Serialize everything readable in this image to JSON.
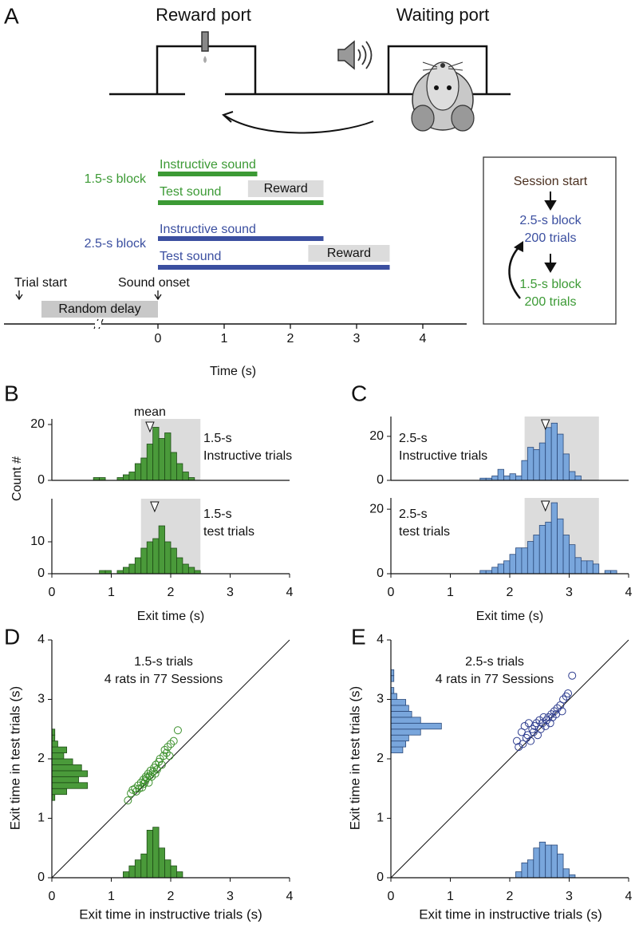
{
  "panel_labels": [
    "A",
    "B",
    "C",
    "D",
    "E"
  ],
  "diagram": {
    "ports": [
      "Reward port",
      "Waiting port"
    ],
    "blocks": [
      {
        "name": "1.5-s block",
        "sounds": [
          "Instructive sound",
          "Test sound"
        ],
        "reward": "Reward",
        "color": "#3c9a35",
        "sound_s": 1.5,
        "test_s": 2.5,
        "reward_s": [
          1.36,
          2.5
        ]
      },
      {
        "name": "2.5-s block",
        "sounds": [
          "Instructive sound",
          "Test sound"
        ],
        "reward": "Reward",
        "color": "#3b4fa0",
        "sound_s": 2.5,
        "test_s": 3.5,
        "reward_s": [
          2.27,
          3.5
        ]
      }
    ],
    "events": [
      "Trial start",
      "Sound onset"
    ],
    "delay": "Random delay",
    "time_ticks": [
      0,
      1,
      2,
      3,
      4
    ],
    "time_label": "Time (s)",
    "schedule": [
      "Session start",
      "2.5-s block",
      "200 trials",
      "1.5-s block",
      "200 trials"
    ]
  },
  "chart_data": [
    {
      "type": "histogram",
      "label": [
        "1.5-s",
        "Instructive trials"
      ],
      "ylabel": "Count #",
      "mean_label": "mean",
      "mean": 1.65,
      "shade": [
        1.5,
        2.5
      ],
      "color": "#4a9a3a",
      "edgecolor": "#1f4d17",
      "bins": [
        0.7,
        0.8,
        0.9,
        1.0,
        1.1,
        1.2,
        1.3,
        1.4,
        1.5,
        1.6,
        1.7,
        1.8,
        1.9,
        2.0,
        2.1,
        2.2,
        2.3,
        2.4
      ],
      "values": [
        1,
        1,
        0,
        0,
        1,
        2,
        3,
        6,
        8,
        13,
        19,
        15,
        17,
        10,
        6,
        3,
        1
      ],
      "xlim": [
        0,
        4
      ],
      "ylim": [
        0,
        22
      ],
      "yticks": [
        0,
        20
      ]
    },
    {
      "type": "histogram",
      "label": [
        "1.5-s",
        "test trials"
      ],
      "mean": 1.73,
      "shade": [
        1.5,
        2.5
      ],
      "color": "#4a9a3a",
      "edgecolor": "#1f4d17",
      "bins": [
        0.8,
        0.9,
        1.0,
        1.1,
        1.2,
        1.3,
        1.4,
        1.5,
        1.6,
        1.7,
        1.8,
        1.9,
        2.0,
        2.1,
        2.2,
        2.3,
        2.4,
        2.5
      ],
      "values": [
        1,
        1,
        0,
        1,
        2,
        3,
        5,
        8,
        10,
        11,
        15,
        10,
        8,
        5,
        3,
        2,
        1
      ],
      "xlim": [
        0,
        4
      ],
      "ylim": [
        0,
        23.5
      ],
      "yticks": [
        0,
        10
      ],
      "xticks": [
        0,
        1,
        2,
        3,
        4
      ],
      "xlabel": "Exit time (s)"
    },
    {
      "type": "histogram",
      "label": [
        "2.5-s",
        "Instructive trials"
      ],
      "mean": 2.6,
      "shade": [
        2.25,
        3.5
      ],
      "color": "#79a6dc",
      "edgecolor": "#2c4a7a",
      "bins": [
        1.5,
        1.6,
        1.7,
        1.8,
        1.9,
        2.0,
        2.1,
        2.2,
        2.3,
        2.4,
        2.5,
        2.6,
        2.7,
        2.8,
        2.9,
        3.0,
        3.1,
        3.2
      ],
      "values": [
        1,
        1,
        2,
        5,
        2,
        3,
        2,
        9,
        15,
        14,
        17,
        24,
        26,
        21,
        12,
        4,
        2
      ],
      "xlim": [
        0,
        4
      ],
      "ylim": [
        0,
        29
      ],
      "yticks": [
        0,
        20
      ]
    },
    {
      "type": "histogram",
      "label": [
        "2.5-s",
        "test trials"
      ],
      "mean": 2.6,
      "shade": [
        2.25,
        3.5
      ],
      "color": "#79a6dc",
      "edgecolor": "#2c4a7a",
      "bins": [
        1.5,
        1.6,
        1.7,
        1.8,
        1.9,
        2.0,
        2.1,
        2.2,
        2.3,
        2.4,
        2.5,
        2.6,
        2.7,
        2.8,
        2.9,
        3.0,
        3.1,
        3.2,
        3.3,
        3.4,
        3.5,
        3.6,
        3.7,
        3.8
      ],
      "values": [
        1,
        1,
        2,
        3,
        4,
        6,
        8,
        8,
        10,
        12,
        15,
        16,
        22,
        17,
        12,
        9,
        5,
        4,
        4,
        3,
        0,
        1,
        1
      ],
      "xlim": [
        0,
        4
      ],
      "ylim": [
        0,
        23.5
      ],
      "yticks": [
        0,
        20
      ],
      "xticks": [
        0,
        1,
        2,
        3,
        4
      ],
      "xlabel": "Exit time (s)"
    },
    {
      "type": "scatter",
      "annotations": [
        "1.5-s trials",
        "4 rats in 77 Sessions"
      ],
      "xlabel": "Exit time in instructive trials (s)",
      "ylabel": "Exit time in test trials (s)",
      "color": "#3a8f2a",
      "bar_color": "#4a9a3a",
      "edgecolor": "#1f4d17",
      "x": [
        1.28,
        1.33,
        1.36,
        1.4,
        1.42,
        1.45,
        1.47,
        1.5,
        1.52,
        1.54,
        1.55,
        1.57,
        1.58,
        1.6,
        1.62,
        1.63,
        1.65,
        1.66,
        1.68,
        1.7,
        1.72,
        1.74,
        1.75,
        1.77,
        1.8,
        1.82,
        1.85,
        1.88,
        1.9,
        1.93,
        1.95,
        1.98,
        2.0,
        2.05,
        2.12
      ],
      "values": [
        1.3,
        1.42,
        1.48,
        1.5,
        1.45,
        1.55,
        1.5,
        1.6,
        1.52,
        1.65,
        1.58,
        1.62,
        1.7,
        1.68,
        1.75,
        1.6,
        1.72,
        1.8,
        1.7,
        1.78,
        1.85,
        1.75,
        1.9,
        1.82,
        1.95,
        2.0,
        1.9,
        2.05,
        2.15,
        2.1,
        2.2,
        2.05,
        2.25,
        2.3,
        2.48
      ],
      "marginal_y": {
        "bins": [
          1.3,
          1.4,
          1.5,
          1.6,
          1.7,
          1.8,
          1.9,
          2.0,
          2.1,
          2.2,
          2.3,
          2.4,
          2.5
        ],
        "values": [
          0.05,
          0.25,
          0.6,
          0.45,
          0.6,
          0.5,
          0.35,
          0.2,
          0.25,
          0.1,
          0.05,
          0.05
        ]
      },
      "marginal_x": {
        "bins": [
          1.2,
          1.3,
          1.4,
          1.5,
          1.6,
          1.7,
          1.8,
          1.9,
          2.0,
          2.1,
          2.2
        ],
        "values": [
          0.1,
          0.2,
          0.3,
          0.4,
          0.8,
          0.85,
          0.5,
          0.3,
          0.2,
          0.1
        ]
      },
      "diagonal": true,
      "xlim": [
        0,
        4
      ],
      "ylim": [
        0,
        4
      ],
      "xticks": [
        0,
        1,
        2,
        3,
        4
      ],
      "yticks": [
        0,
        1,
        2,
        3,
        4
      ]
    },
    {
      "type": "scatter",
      "annotations": [
        "2.5-s trials",
        "4 rats in 77 Sessions"
      ],
      "xlabel": "Exit time in instructive trials (s)",
      "ylabel": "Exit time in test trials (s)",
      "color": "#2e3d8f",
      "bar_color": "#79a6dc",
      "edgecolor": "#2c4a7a",
      "x": [
        2.12,
        2.15,
        2.2,
        2.22,
        2.25,
        2.28,
        2.3,
        2.32,
        2.35,
        2.38,
        2.4,
        2.42,
        2.45,
        2.47,
        2.5,
        2.52,
        2.55,
        2.57,
        2.6,
        2.62,
        2.65,
        2.68,
        2.7,
        2.72,
        2.75,
        2.78,
        2.8,
        2.85,
        2.88,
        2.9,
        2.95,
        2.98,
        3.05
      ],
      "values": [
        2.3,
        2.2,
        2.45,
        2.25,
        2.55,
        2.35,
        2.4,
        2.6,
        2.3,
        2.5,
        2.45,
        2.55,
        2.6,
        2.4,
        2.65,
        2.5,
        2.6,
        2.7,
        2.55,
        2.65,
        2.7,
        2.6,
        2.75,
        2.7,
        2.8,
        2.75,
        2.85,
        2.9,
        2.8,
        3.0,
        3.05,
        3.1,
        3.4
      ],
      "marginal_y": {
        "bins": [
          2.1,
          2.2,
          2.3,
          2.4,
          2.5,
          2.6,
          2.7,
          2.8,
          2.9,
          3.0,
          3.1,
          3.2,
          3.3,
          3.4,
          3.5
        ],
        "values": [
          0.2,
          0.25,
          0.3,
          0.5,
          0.85,
          0.5,
          0.35,
          0.3,
          0.25,
          0.1,
          0.05,
          0,
          0.05,
          0.05
        ]
      },
      "marginal_x": {
        "bins": [
          2.1,
          2.2,
          2.3,
          2.4,
          2.5,
          2.6,
          2.7,
          2.8,
          2.9,
          3.0,
          3.1
        ],
        "values": [
          0.1,
          0.25,
          0.3,
          0.5,
          0.6,
          0.55,
          0.55,
          0.4,
          0.15,
          0.05
        ]
      },
      "diagonal": true,
      "xlim": [
        0,
        4
      ],
      "ylim": [
        0,
        4
      ],
      "xticks": [
        0,
        1,
        2,
        3,
        4
      ],
      "yticks": [
        0,
        1,
        2,
        3,
        4
      ]
    }
  ]
}
